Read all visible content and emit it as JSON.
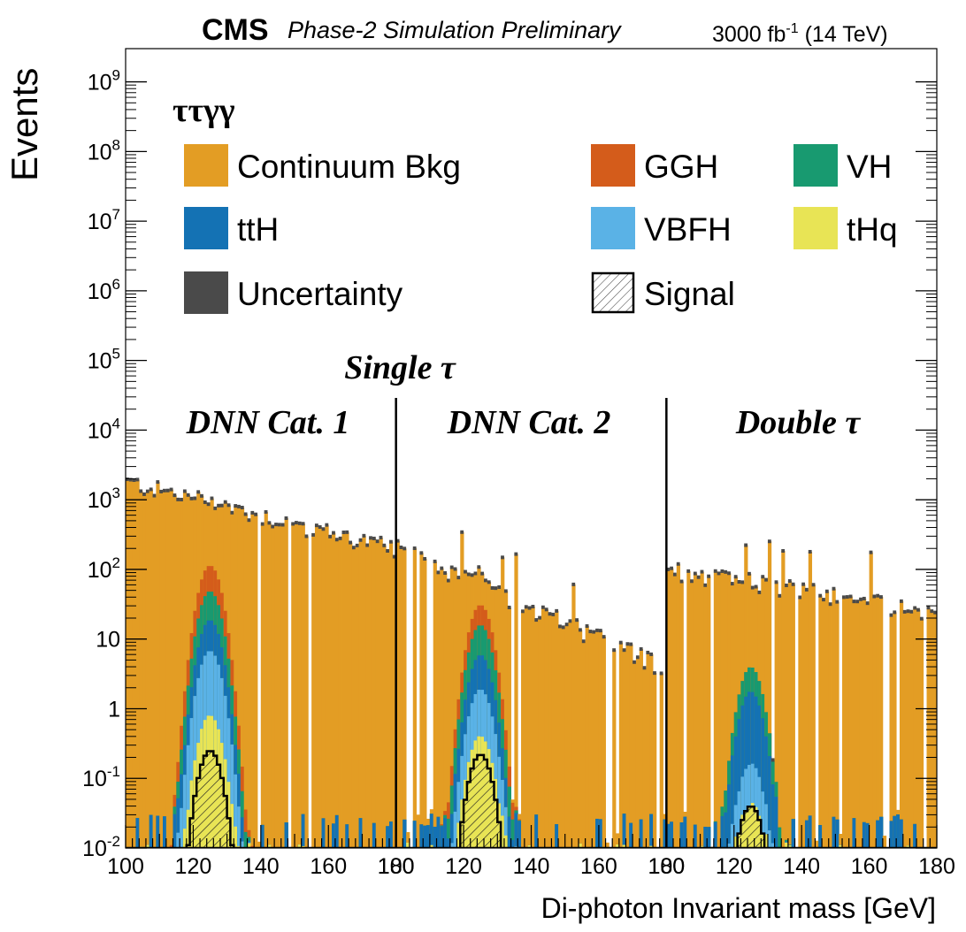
{
  "header": {
    "experiment": "CMS",
    "status": "Phase-2 Simulation Preliminary",
    "lumi_value": "3000 fb",
    "lumi_exp": "-1",
    "energy": " (14 TeV)"
  },
  "legend": {
    "title": "ττγγ",
    "entries": [
      {
        "label": "Continuum Bkg",
        "color": "#e39d24"
      },
      {
        "label": "GGH",
        "color": "#d45c1b"
      },
      {
        "label": "VH",
        "color": "#189a70"
      },
      {
        "label": "ttH",
        "color": "#1472b4"
      },
      {
        "label": "VBFH",
        "color": "#5ab2e6"
      },
      {
        "label": "tHq",
        "color": "#e8e455"
      },
      {
        "label": "Uncertainty",
        "color": "#4a4a4a"
      },
      {
        "label": "Signal",
        "color": "hatched"
      }
    ]
  },
  "annotations": {
    "single_tau": "Single τ",
    "cat1": "DNN Cat. 1",
    "cat2": "DNN Cat. 2",
    "double_tau": "Double τ"
  },
  "chart_data": {
    "type": "bar",
    "title": "CMS Phase-2 Simulation Preliminary",
    "xlabel": "Di-photon Invariant mass [GeV]",
    "ylabel": "Events",
    "yscale": "log",
    "ylim": [
      0.01,
      3000000000
    ],
    "y_tick_labels": [
      "10^{-2}",
      "10^{-1}",
      "1",
      "10",
      "10^{2}",
      "10^{3}",
      "10^{4}",
      "10^{5}",
      "10^{6}",
      "10^{7}",
      "10^{8}",
      "10^{9}"
    ],
    "x_tick_labels": [
      "100",
      "120",
      "140",
      "160",
      "180",
      "100",
      "120",
      "140",
      "160",
      "180",
      "100",
      "120",
      "140",
      "160",
      "180"
    ],
    "panels": [
      {
        "name": "DNN Cat. 1",
        "x_range": [
          100,
          180
        ],
        "bkg_start": 1800,
        "bkg_end": 200,
        "higgs_peak": {
          "GGH": 65,
          "VH": 30,
          "ttH": 12,
          "VBFH": 6,
          "tHq": 0.8
        },
        "signal_peak": 0.25
      },
      {
        "name": "DNN Cat. 2",
        "x_range": [
          100,
          180
        ],
        "bkg_start": 200,
        "bkg_end": 4,
        "higgs_peak": {
          "GGH": 15,
          "VH": 10,
          "ttH": 4,
          "VBFH": 1.5,
          "tHq": 0.4
        },
        "signal_peak": 0.22
      },
      {
        "name": "Double τ",
        "x_range": [
          100,
          180
        ],
        "bkg_start": 100,
        "bkg_end": 25,
        "higgs_peak": {
          "GGH": 0,
          "VH": 2.2,
          "ttH": 1.6,
          "VBFH": 0.12,
          "tHq": 0.035
        },
        "signal_peak": 0.04
      }
    ]
  }
}
